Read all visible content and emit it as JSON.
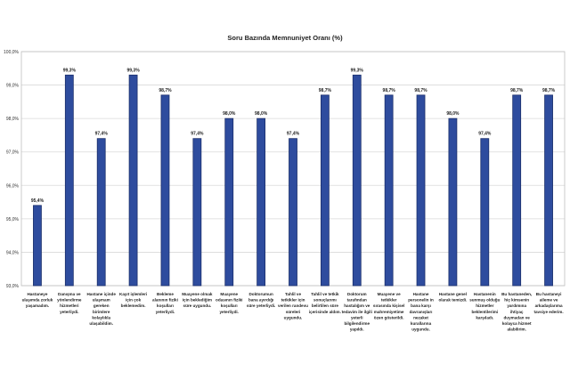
{
  "chart_data": {
    "type": "bar",
    "title": "Soru Bazında Memnuniyet Oranı (%)",
    "ylim": [
      93,
      100
    ],
    "yticks": [
      "93,0%",
      "94,0%",
      "95,0%",
      "96,0%",
      "97,0%",
      "98,0%",
      "99,0%",
      "100,0%"
    ],
    "grid": true,
    "categories": [
      [
        "Hastaneye",
        "ulaşımda zorluk",
        "yaşamadım."
      ],
      [
        "Danışma ve",
        "yönlendirme",
        "hizmetleri",
        "yeterliydi."
      ],
      [
        "Hastane içinde",
        "ulaşmam",
        "gereken",
        "birimlere",
        "kolaylıkla",
        "ulaşabildim."
      ],
      [
        "Kayıt işlemleri",
        "için çok",
        "beklemedim."
      ],
      [
        "Bekleme",
        "alanının fiziki",
        "koşulları",
        "yeterliydi."
      ],
      [
        "Muayene olmak",
        "için beklediğim",
        "süre uygundu."
      ],
      [
        "Muayene",
        "odasının fiziki",
        "koşulları",
        "yeterliydi."
      ],
      [
        "Doktorumun",
        "bana ayırdığı",
        "süre yeterliydi."
      ],
      [
        "Tahlil ve",
        "tetkikler için",
        "verilen randevu",
        "süreleri",
        "uygundu."
      ],
      [
        "Tahlil ve tetkik",
        "sonuçlarımı",
        "belirtilen süre",
        "içerisinde aldım."
      ],
      [
        "Doktorum",
        "tarafından",
        "hastalığım ve",
        "tedavim ile ilgili",
        "yeterli",
        "bilgilendirme",
        "yapıldı."
      ],
      [
        "Muayene ve",
        "tetkikler",
        "sırasında kişisel",
        "mahremiyetime",
        "özen gösterildi."
      ],
      [
        "Hastane",
        "personelin in",
        "bana karşı",
        "davranışları",
        "nezaket",
        "kurallarına",
        "uygundu."
      ],
      [
        "Hastane genel",
        "olarak temizdi."
      ],
      [
        "Hastanenin",
        "sunmuş olduğu",
        "hizmetler",
        "beklentilerimi",
        "karşıladı."
      ],
      [
        "Bu hastaneden,",
        "hiç kimsenin",
        "yardımına",
        "ihtiyaç",
        "duymadan ve",
        "kolayca hizmet",
        "alabilirim."
      ],
      [
        "Bu hastaneyi",
        "aileme ve",
        "arkadaşlarıma",
        "tavsiye ederim."
      ]
    ],
    "values": [
      95.4,
      99.3,
      97.4,
      99.3,
      98.7,
      97.4,
      98.0,
      98.0,
      97.4,
      98.7,
      99.3,
      98.7,
      98.7,
      98.0,
      97.4,
      98.7,
      98.7
    ],
    "data_labels": [
      "95,4%",
      "99,3%",
      "97,4%",
      "99,3%",
      "98,7%",
      "97,4%",
      "98,0%",
      "98,0%",
      "97,4%",
      "98,7%",
      "99,3%",
      "98,7%",
      "98,7%",
      "98,0%",
      "97,4%",
      "98,7%",
      "98,7%"
    ],
    "bar_color": "#2E4C9E",
    "bar_edge_color": "#1B2F6B"
  }
}
